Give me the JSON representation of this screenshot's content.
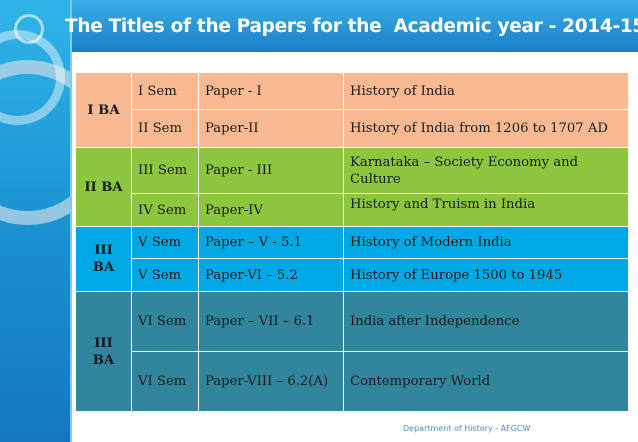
{
  "title": "The Titles of the Papers for the  Academic year - 2014-15",
  "groups": [
    {
      "year": "I BA",
      "rows": [
        {
          "sem": "I Sem",
          "paper": "Paper - I",
          "title": "History of India"
        },
        {
          "sem": "II Sem",
          "paper": "Paper-II",
          "title": "History of India from 1206 to 1707 AD"
        }
      ]
    },
    {
      "year": "II BA",
      "rows": [
        {
          "sem": "III Sem",
          "paper": "Paper - III",
          "title": "Karnataka – Society Economy and Culture"
        },
        {
          "sem": "IV Sem",
          "paper": "Paper-IV",
          "title": "History and Truism in India"
        }
      ]
    },
    {
      "year": "III BA",
      "rows": [
        {
          "sem": "V Sem",
          "paper": "Paper – V - 5.1",
          "title": "History of Modern India"
        },
        {
          "sem": "V Sem",
          "paper": "Paper-VI – 5.2",
          "title": "History of Europe 1500 to 1945"
        }
      ]
    },
    {
      "year": "III BA",
      "rows": [
        {
          "sem": "VI Sem",
          "paper": "Paper – VII – 6.1",
          "title": "India after Independence"
        },
        {
          "sem": "VI Sem",
          "paper": "Paper-VIII – 6.2(A)",
          "title": "Contemporary World"
        }
      ]
    }
  ],
  "footer": "Department of History - AFGCW",
  "colors": {
    "header_blue": "#1a7fc6",
    "group1": "#f9b993",
    "group2": "#8cc63f",
    "group3": "#00a9e6",
    "group4": "#31859c"
  }
}
